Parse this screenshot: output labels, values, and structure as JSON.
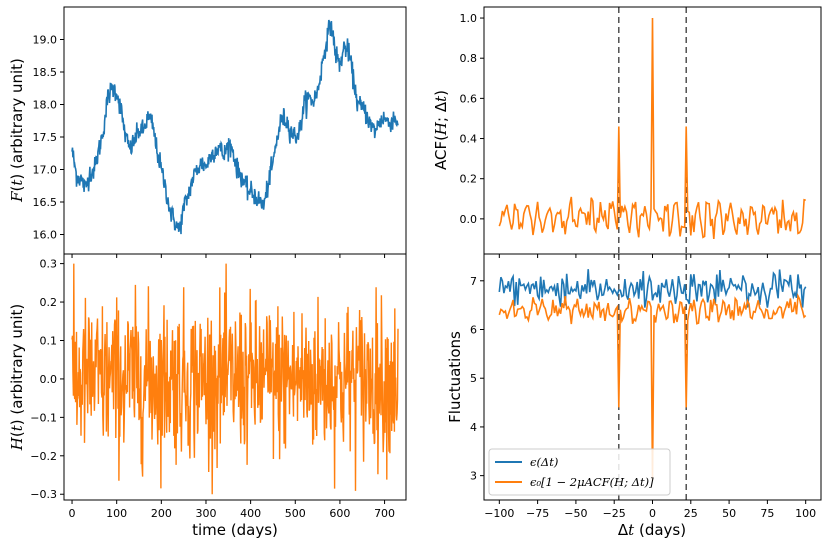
{
  "colors": {
    "blue": "#1f77b4",
    "orange": "#ff7f0e",
    "frame": "#000000",
    "vline": "#444444"
  },
  "chart_data": [
    {
      "id": "F",
      "type": "line",
      "xlim": [
        -18,
        748
      ],
      "ylim": [
        15.7,
        19.5
      ],
      "yticks": [
        16.0,
        16.5,
        17.0,
        17.5,
        18.0,
        18.5,
        19.0
      ],
      "ytick_labels": [
        "16.0",
        "16.5",
        "17.0",
        "17.5",
        "18.0",
        "18.5",
        "19.0"
      ],
      "ylabel": "F(t) (arbitrary unit)",
      "series": [
        {
          "color": "#1f77b4",
          "anchors_x": [
            0,
            10,
            20,
            30,
            40,
            50,
            60,
            70,
            80,
            90,
            100,
            110,
            120,
            130,
            140,
            150,
            160,
            170,
            180,
            190,
            200,
            210,
            220,
            230,
            240,
            250,
            260,
            270,
            280,
            290,
            300,
            310,
            320,
            330,
            340,
            350,
            360,
            370,
            380,
            390,
            400,
            410,
            420,
            430,
            440,
            450,
            460,
            470,
            480,
            490,
            500,
            510,
            520,
            530,
            540,
            550,
            560,
            570,
            580,
            590,
            600,
            610,
            620,
            630,
            640,
            650,
            660,
            670,
            680,
            690,
            700,
            710,
            720,
            730
          ],
          "anchors_y": [
            17.3,
            16.9,
            16.85,
            16.7,
            16.95,
            17.0,
            17.3,
            17.6,
            18.1,
            18.25,
            18.2,
            17.9,
            17.5,
            17.3,
            17.45,
            17.6,
            17.6,
            17.8,
            17.7,
            17.3,
            17.0,
            16.7,
            16.35,
            16.2,
            16.05,
            16.4,
            16.6,
            16.85,
            17.0,
            17.1,
            17.05,
            17.2,
            17.3,
            17.35,
            17.2,
            17.4,
            17.3,
            17.0,
            16.9,
            16.7,
            16.65,
            16.6,
            16.5,
            16.45,
            16.8,
            17.1,
            17.5,
            17.8,
            17.75,
            17.6,
            17.5,
            17.6,
            18.0,
            18.1,
            18.05,
            18.2,
            18.6,
            19.0,
            19.25,
            18.8,
            18.6,
            18.9,
            18.8,
            18.4,
            18.0,
            17.95,
            17.85,
            17.65,
            17.6,
            17.75,
            17.8,
            17.7,
            17.8,
            17.75
          ],
          "noise": 0.08
        }
      ]
    },
    {
      "id": "H",
      "type": "line",
      "xlim": [
        -18,
        748
      ],
      "ylim": [
        -0.315,
        0.325
      ],
      "xticks": [
        0,
        100,
        200,
        300,
        400,
        500,
        600,
        700
      ],
      "xtick_labels": [
        "0",
        "100",
        "200",
        "300",
        "400",
        "500",
        "600",
        "700"
      ],
      "yticks": [
        -0.3,
        -0.2,
        -0.1,
        0.0,
        0.1,
        0.2,
        0.3
      ],
      "ytick_labels": [
        "−0.3",
        "−0.2",
        "−0.1",
        "0.0",
        "0.1",
        "0.2",
        "0.3"
      ],
      "xlabel": "time (days)",
      "ylabel": "H(t) (arbitrary unit)",
      "series": [
        {
          "color": "#ff7f0e",
          "x_range": [
            0,
            730
          ],
          "amplitude": 0.1,
          "peak_max": 0.3,
          "peak_min": -0.3
        }
      ]
    },
    {
      "id": "ACF",
      "type": "line",
      "xlim": [
        -110,
        110
      ],
      "ylim": [
        -0.175,
        1.055
      ],
      "yticks": [
        0.0,
        0.2,
        0.4,
        0.6,
        0.8,
        1.0
      ],
      "ytick_labels": [
        "0.0",
        "0.2",
        "0.4",
        "0.6",
        "0.8",
        "1.0"
      ],
      "ylabel": "ACF(H; Δt)",
      "vlines": [
        -22,
        22
      ],
      "series": [
        {
          "color": "#ff7f0e",
          "x_range": [
            -100,
            100
          ],
          "peak_value": 1.0,
          "side_peak_value": 0.46,
          "side_peak_lag": 22,
          "baseline_amplitude": 0.05
        }
      ]
    },
    {
      "id": "Fluct",
      "type": "line",
      "xlim": [
        -110,
        110
      ],
      "ylim": [
        2.5,
        7.55
      ],
      "xticks": [
        -100,
        -75,
        -50,
        -25,
        0,
        25,
        50,
        75,
        100
      ],
      "xtick_labels": [
        "−100",
        "−75",
        "−50",
        "−25",
        "0",
        "25",
        "50",
        "75",
        "100"
      ],
      "yticks": [
        3,
        4,
        5,
        6,
        7
      ],
      "ytick_labels": [
        "3",
        "4",
        "5",
        "6",
        "7"
      ],
      "xlabel": "Δt (days)",
      "ylabel": "Fluctuations",
      "legend_position": "lower-left",
      "vlines": [
        -22,
        22
      ],
      "series": [
        {
          "name": "ϵ(Δt)",
          "color": "#1f77b4",
          "mean": 6.85,
          "dip_value": 6.6
        },
        {
          "name": "ϵ₀[1 − 2μACF(H; Δt)]",
          "color": "#ff7f0e",
          "mean": 6.4,
          "dip_value": 2.9,
          "side_dip_value": 4.4
        }
      ]
    }
  ]
}
